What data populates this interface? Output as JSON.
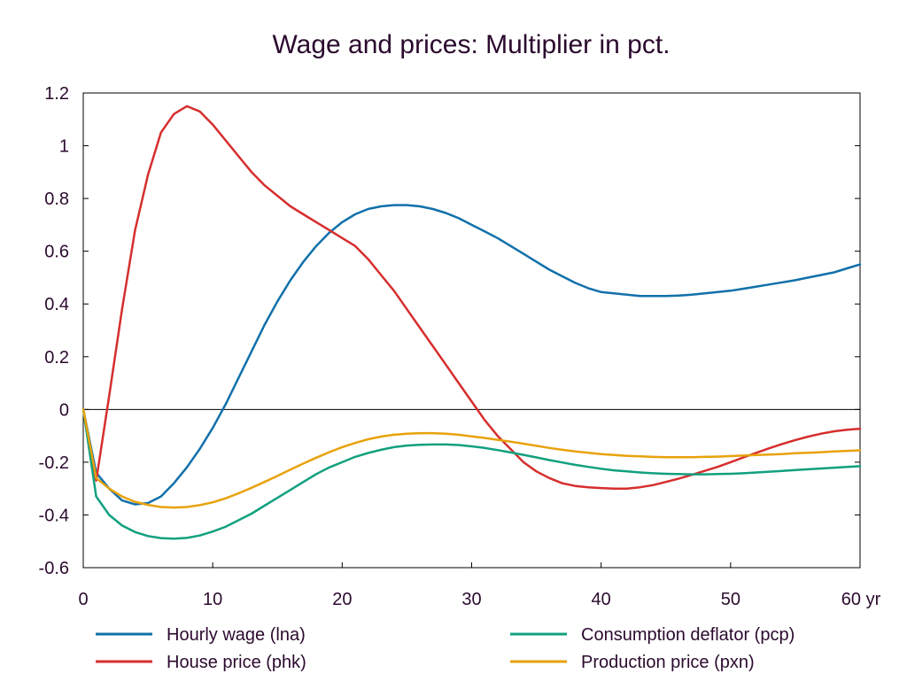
{
  "chart_data": {
    "type": "line",
    "title": "Wage and prices: Multiplier in pct.",
    "x_tick_labels": [
      "0",
      "10",
      "20",
      "30",
      "40",
      "50",
      "60 yr"
    ],
    "x_ticks": [
      0,
      10,
      20,
      30,
      40,
      50,
      60
    ],
    "y_tick_labels": [
      "1.2",
      "1",
      "0.8",
      "0.6",
      "0.4",
      "0.2",
      "0",
      "-0.2",
      "-0.4",
      "-0.6"
    ],
    "y_ticks": [
      1.2,
      1.0,
      0.8,
      0.6,
      0.4,
      0.2,
      0.0,
      -0.2,
      -0.4,
      -0.6
    ],
    "xlim": [
      0,
      60
    ],
    "ylim": [
      -0.6,
      1.2
    ],
    "grid": false,
    "zero_line": true,
    "legend_position": "bottom",
    "x": [
      0,
      1,
      2,
      3,
      4,
      5,
      6,
      7,
      8,
      9,
      10,
      11,
      12,
      13,
      14,
      15,
      16,
      17,
      18,
      19,
      20,
      21,
      22,
      23,
      24,
      25,
      26,
      27,
      28,
      29,
      30,
      31,
      32,
      33,
      34,
      35,
      36,
      37,
      38,
      39,
      40,
      41,
      42,
      43,
      44,
      45,
      46,
      47,
      48,
      49,
      50,
      51,
      52,
      53,
      54,
      55,
      56,
      57,
      58,
      59,
      60
    ],
    "series": [
      {
        "name": "Hourly wage (lna)",
        "color": "#1170aa",
        "values": [
          0,
          -0.24,
          -0.3,
          -0.345,
          -0.36,
          -0.355,
          -0.33,
          -0.28,
          -0.22,
          -0.15,
          -0.07,
          0.02,
          0.12,
          0.22,
          0.32,
          0.41,
          0.49,
          0.56,
          0.62,
          0.67,
          0.71,
          0.74,
          0.76,
          0.77,
          0.775,
          0.775,
          0.77,
          0.76,
          0.745,
          0.725,
          0.7,
          0.675,
          0.65,
          0.62,
          0.59,
          0.56,
          0.53,
          0.505,
          0.48,
          0.46,
          0.445,
          0.44,
          0.435,
          0.43,
          0.43,
          0.43,
          0.432,
          0.435,
          0.44,
          0.445,
          0.45,
          0.458,
          0.466,
          0.474,
          0.482,
          0.49,
          0.5,
          0.51,
          0.52,
          0.535,
          0.55
        ]
      },
      {
        "name": "House price (phk)",
        "color": "#d62e2e",
        "values": [
          0,
          -0.27,
          0.05,
          0.38,
          0.68,
          0.89,
          1.05,
          1.12,
          1.15,
          1.13,
          1.08,
          1.02,
          0.96,
          0.9,
          0.85,
          0.81,
          0.77,
          0.74,
          0.71,
          0.68,
          0.65,
          0.62,
          0.57,
          0.51,
          0.45,
          0.38,
          0.31,
          0.24,
          0.17,
          0.1,
          0.03,
          -0.04,
          -0.1,
          -0.15,
          -0.2,
          -0.235,
          -0.26,
          -0.28,
          -0.29,
          -0.295,
          -0.298,
          -0.3,
          -0.3,
          -0.295,
          -0.287,
          -0.275,
          -0.262,
          -0.248,
          -0.233,
          -0.218,
          -0.2,
          -0.182,
          -0.164,
          -0.147,
          -0.131,
          -0.116,
          -0.103,
          -0.092,
          -0.083,
          -0.077,
          -0.073
        ]
      },
      {
        "name": "Consumption deflator (pcp)",
        "color": "#12a07f",
        "values": [
          0,
          -0.33,
          -0.4,
          -0.44,
          -0.465,
          -0.48,
          -0.488,
          -0.49,
          -0.487,
          -0.478,
          -0.463,
          -0.445,
          -0.42,
          -0.395,
          -0.365,
          -0.335,
          -0.305,
          -0.275,
          -0.245,
          -0.22,
          -0.2,
          -0.18,
          -0.165,
          -0.153,
          -0.143,
          -0.137,
          -0.134,
          -0.133,
          -0.133,
          -0.135,
          -0.14,
          -0.146,
          -0.154,
          -0.163,
          -0.172,
          -0.182,
          -0.192,
          -0.201,
          -0.21,
          -0.218,
          -0.225,
          -0.231,
          -0.235,
          -0.239,
          -0.242,
          -0.244,
          -0.245,
          -0.246,
          -0.246,
          -0.245,
          -0.244,
          -0.242,
          -0.239,
          -0.236,
          -0.233,
          -0.23,
          -0.227,
          -0.224,
          -0.221,
          -0.218,
          -0.215
        ]
      },
      {
        "name": "Production price (pxn)",
        "color": "#e8a20c",
        "values": [
          0,
          -0.26,
          -0.3,
          -0.33,
          -0.35,
          -0.362,
          -0.37,
          -0.372,
          -0.37,
          -0.363,
          -0.352,
          -0.337,
          -0.318,
          -0.297,
          -0.275,
          -0.252,
          -0.228,
          -0.205,
          -0.183,
          -0.162,
          -0.143,
          -0.127,
          -0.113,
          -0.103,
          -0.096,
          -0.092,
          -0.09,
          -0.09,
          -0.092,
          -0.096,
          -0.102,
          -0.108,
          -0.115,
          -0.122,
          -0.13,
          -0.138,
          -0.146,
          -0.153,
          -0.159,
          -0.164,
          -0.169,
          -0.173,
          -0.176,
          -0.178,
          -0.18,
          -0.181,
          -0.181,
          -0.181,
          -0.18,
          -0.179,
          -0.177,
          -0.175,
          -0.173,
          -0.171,
          -0.169,
          -0.166,
          -0.164,
          -0.162,
          -0.159,
          -0.157,
          -0.155
        ]
      }
    ]
  }
}
